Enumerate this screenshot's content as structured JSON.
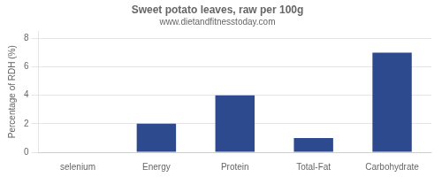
{
  "chart_data": {
    "type": "bar",
    "title": "Sweet potato leaves, raw per 100g",
    "subtitle": "www.dietandfitnesstoday.com",
    "categories": [
      "selenium",
      "Energy",
      "Protein",
      "Total-Fat",
      "Carbohydrate"
    ],
    "values": [
      0,
      2,
      4,
      1,
      7
    ],
    "color": "#2e4a8e",
    "ylabel": "Percentage of RDH (%)",
    "ylim": [
      0,
      8.5
    ],
    "yticks": [
      0,
      2,
      4,
      6,
      8
    ],
    "grid": true
  }
}
